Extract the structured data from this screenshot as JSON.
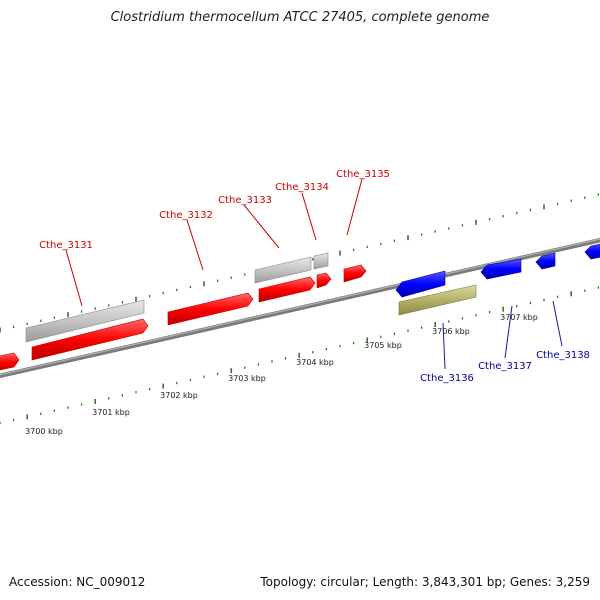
{
  "title": "Clostridium thermocellum ATCC 27405, complete genome",
  "footer": {
    "accession": "Accession: NC_009012",
    "summary": "Topology: circular; Length: 3,843,301 bp; Genes: 3,259"
  },
  "colors": {
    "forward_gene": "#ff0000",
    "reverse_gene": "#0000ff",
    "forward_rna_or_pseudo": "#bdbdbd",
    "reverse_other_feature": "#b5b06a",
    "forward_label": "#cc0000",
    "reverse_label": "#000099",
    "tick": "#2e7d1e",
    "backbone": "#808080"
  },
  "scale_labels": [
    "3700 kbp",
    "3701 kbp",
    "3702 kbp",
    "3703 kbp",
    "3704 kbp",
    "3705 kbp",
    "3706 kbp",
    "3707 kbp"
  ],
  "gene_labels_forward": [
    "Cthe_3131",
    "Cthe_3132",
    "Cthe_3133",
    "Cthe_3134",
    "Cthe_3135"
  ],
  "gene_labels_reverse": [
    "Cthe_3136",
    "Cthe_3137",
    "Cthe_3138"
  ]
}
